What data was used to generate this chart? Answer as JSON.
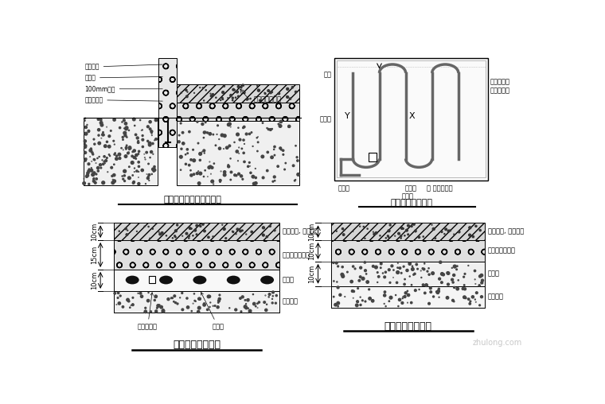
{
  "bg": "#ffffff",
  "tl_title": "冷库墙身板与地坪接点图",
  "tr_title": "冷库地面电热防冻",
  "bl_title": "低温冷库地面大样",
  "br_title": "中温冷库地面大样",
  "tl_labels": [
    "门槛连接",
    "隔热板",
    "100mm管框",
    "波石铝管钉"
  ],
  "tl_note": "地面做法见下图",
  "tr_labels_left": [
    "制冷",
    "冷库内",
    "冷凝机"
  ],
  "tr_labels_right": [
    "常用电热丝",
    "备用电热丝"
  ],
  "tr_labels_bottom": [
    "冷凝机",
    "入口处",
    "温控传感器"
  ],
  "bl_layers": [
    "楼板层域, 防潮处理",
    "地坪保温防潮层",
    "架空层",
    "基础地面"
  ],
  "bl_dims": [
    "10cm",
    "15cm",
    "10cm"
  ],
  "bl_annots": [
    "砼垫块缝条",
    "电热丝"
  ],
  "br_layers": [
    "楼板层域, 防潮处理",
    "地面保温防潮层",
    "碎石层",
    "基础地面"
  ],
  "br_dims": [
    "10cm",
    "10cm",
    "10cm"
  ]
}
